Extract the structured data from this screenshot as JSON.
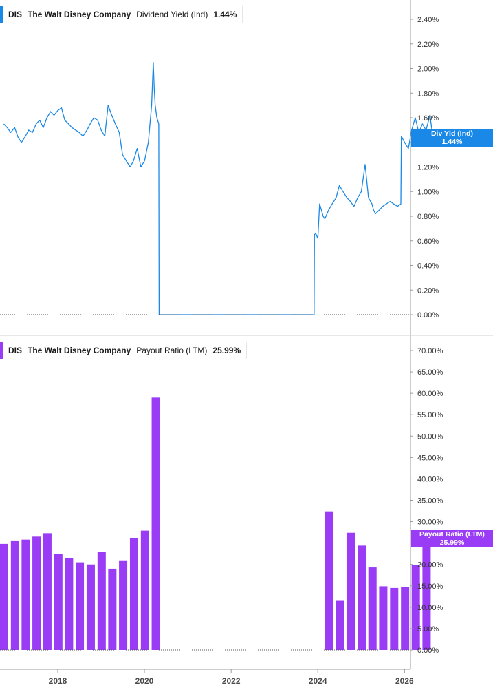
{
  "panels": [
    {
      "ticker": "DIS",
      "company": "The Walt Disney Company",
      "metric": "Dividend Yield (Ind)",
      "value": "1.44%",
      "tag_label": "Div Yld (Ind)",
      "tag_value": "1.44%",
      "color": "#1a88e6"
    },
    {
      "ticker": "DIS",
      "company": "The Walt Disney Company",
      "metric": "Payout Ratio (LTM)",
      "value": "25.99%",
      "tag_label": "Payout Ratio (LTM)",
      "tag_value": "25.99%",
      "color": "#9a3cf5"
    }
  ],
  "chart_data": [
    {
      "type": "line",
      "series": [
        {
          "name": "Dividend Yield (Ind)",
          "x": [
            "2016-10-03",
            "2016-11-01",
            "2016-12-01",
            "2017-01-03",
            "2017-02-01",
            "2017-03-01",
            "2017-04-03",
            "2017-05-01",
            "2017-06-01",
            "2017-07-03",
            "2017-08-01",
            "2017-09-01",
            "2017-10-02",
            "2017-11-01",
            "2017-12-01",
            "2018-01-02",
            "2018-02-01",
            "2018-03-01",
            "2018-04-02",
            "2018-05-01",
            "2018-06-01",
            "2018-07-02",
            "2018-08-01",
            "2018-09-04",
            "2018-10-01",
            "2018-11-01",
            "2018-12-03",
            "2019-01-02",
            "2019-02-01",
            "2019-03-01",
            "2019-04-01",
            "2019-05-01",
            "2019-06-03",
            "2019-07-01",
            "2019-08-01",
            "2019-09-03",
            "2019-10-01",
            "2019-11-01",
            "2019-12-02",
            "2020-01-02",
            "2020-02-03",
            "2020-03-02",
            "2020-03-16",
            "2020-03-23",
            "2020-04-01",
            "2020-04-15",
            "2020-05-01",
            "2020-05-04",
            "2021-01-04",
            "2022-01-03",
            "2023-01-03",
            "2023-12-01",
            "2023-12-04",
            "2023-12-15",
            "2024-01-02",
            "2024-01-16",
            "2024-02-01",
            "2024-02-15",
            "2024-03-01",
            "2024-04-01",
            "2024-05-01",
            "2024-06-03",
            "2024-07-01",
            "2024-08-01",
            "2024-09-03",
            "2024-10-01",
            "2024-11-01",
            "2024-12-02",
            "2025-01-02",
            "2025-02-03",
            "2025-03-03",
            "2025-04-01",
            "2025-04-15",
            "2025-05-01",
            "2025-06-02",
            "2025-07-01",
            "2025-08-01",
            "2025-09-02",
            "2025-10-01",
            "2025-11-03",
            "2025-12-01",
            "2025-12-05",
            "2026-01-02",
            "2026-02-02",
            "2026-03-02",
            "2026-04-01",
            "2026-05-01",
            "2026-06-01",
            "2026-07-01",
            "2026-08-03",
            "2026-08-17",
            "2026-09-01"
          ],
          "values": [
            1.55,
            1.52,
            1.48,
            1.52,
            1.44,
            1.4,
            1.45,
            1.5,
            1.48,
            1.55,
            1.58,
            1.52,
            1.6,
            1.65,
            1.62,
            1.66,
            1.68,
            1.58,
            1.55,
            1.52,
            1.5,
            1.48,
            1.45,
            1.5,
            1.55,
            1.6,
            1.58,
            1.5,
            1.45,
            1.7,
            1.62,
            1.55,
            1.48,
            1.3,
            1.25,
            1.2,
            1.25,
            1.35,
            1.2,
            1.25,
            1.4,
            1.7,
            2.05,
            1.85,
            1.7,
            1.6,
            1.55,
            0.0,
            0.0,
            0.0,
            0.0,
            0.0,
            0.65,
            0.66,
            0.62,
            0.9,
            0.85,
            0.8,
            0.78,
            0.85,
            0.9,
            0.95,
            1.05,
            1.0,
            0.95,
            0.92,
            0.88,
            0.95,
            1.0,
            1.22,
            0.95,
            0.9,
            0.85,
            0.82,
            0.85,
            0.88,
            0.9,
            0.92,
            0.9,
            0.88,
            0.9,
            1.45,
            1.4,
            1.35,
            1.5,
            1.6,
            1.48,
            1.55,
            1.5,
            1.62,
            1.52,
            1.44
          ]
        }
      ],
      "ylim": [
        0,
        2.4
      ],
      "yticks": [
        "0.00%",
        "0.20%",
        "0.40%",
        "0.60%",
        "0.80%",
        "1.00%",
        "1.20%",
        "1.40%",
        "1.60%",
        "1.80%",
        "2.00%",
        "2.20%",
        "2.40%"
      ],
      "grid": false,
      "legend": "top-left"
    },
    {
      "type": "bar",
      "series": [
        {
          "name": "Payout Ratio (LTM)",
          "x": [
            "2016-09-30",
            "2016-12-31",
            "2017-03-31",
            "2017-06-30",
            "2017-09-30",
            "2017-12-31",
            "2018-03-31",
            "2018-06-30",
            "2018-09-30",
            "2018-12-31",
            "2019-03-31",
            "2019-06-30",
            "2019-09-30",
            "2019-12-31",
            "2020-03-31",
            "2020-06-30",
            "2024-03-31",
            "2024-06-30",
            "2024-09-30",
            "2024-12-31",
            "2025-03-31",
            "2025-06-30",
            "2025-09-30",
            "2025-12-31",
            "2026-03-31",
            "2026-06-30"
          ],
          "values": [
            24.8,
            25.6,
            25.8,
            26.5,
            27.3,
            22.4,
            21.5,
            20.5,
            20.0,
            23.0,
            19.0,
            20.8,
            26.2,
            27.9,
            59.0,
            0,
            32.4,
            11.5,
            27.4,
            24.4,
            19.3,
            14.9,
            14.5,
            14.7,
            19.9,
            25.99
          ]
        }
      ],
      "ylim": [
        0,
        70
      ],
      "yticks": [
        "0.00%",
        "5.00%",
        "10.00%",
        "15.00%",
        "20.00%",
        "25.00%",
        "30.00%",
        "35.00%",
        "40.00%",
        "45.00%",
        "50.00%",
        "55.00%",
        "60.00%",
        "65.00%",
        "70.00%"
      ],
      "xticks": [
        "2018",
        "2020",
        "2022",
        "2024",
        "2026"
      ],
      "grid": false,
      "legend": "top-left"
    }
  ]
}
